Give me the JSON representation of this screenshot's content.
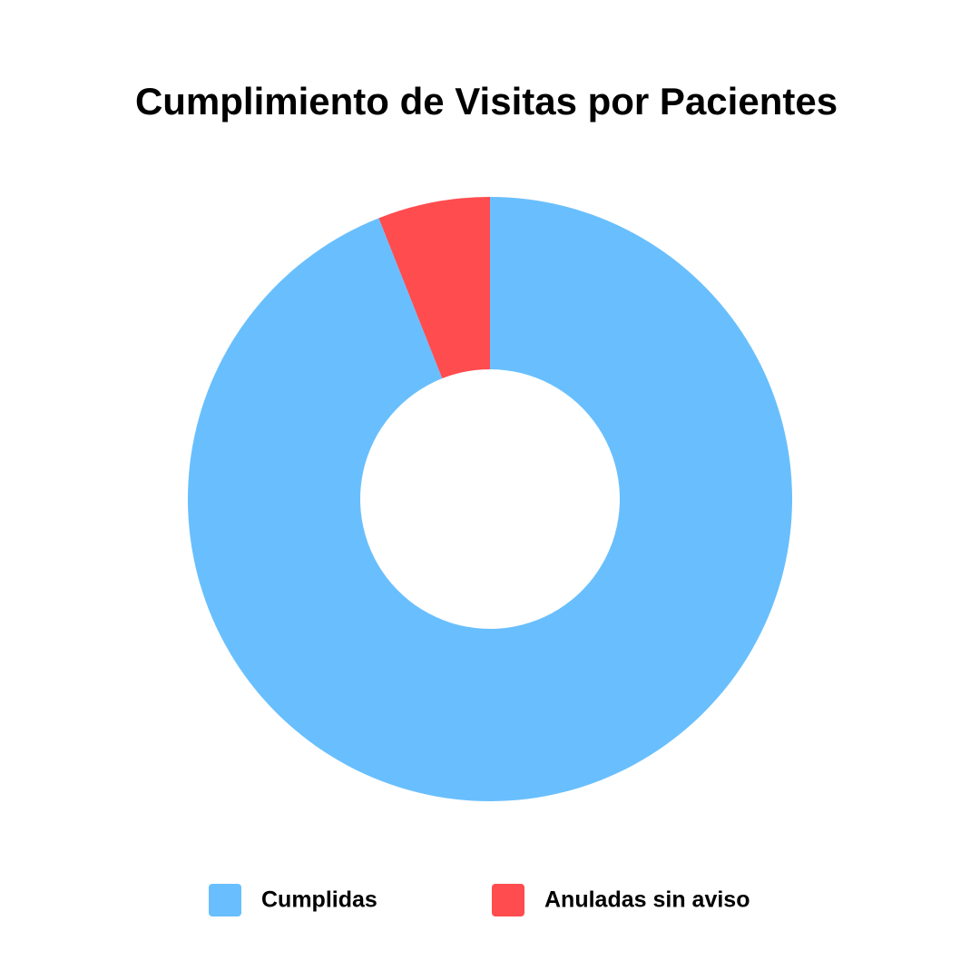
{
  "chart_data": {
    "type": "donut",
    "title": "Cumplimiento de Visitas por Pacientes",
    "categories": [
      "Cumplidas",
      "Anuladas sin aviso"
    ],
    "values": [
      94,
      6
    ],
    "colors": [
      "#69bffd",
      "#ff4c4f"
    ],
    "legend": "bottom"
  }
}
